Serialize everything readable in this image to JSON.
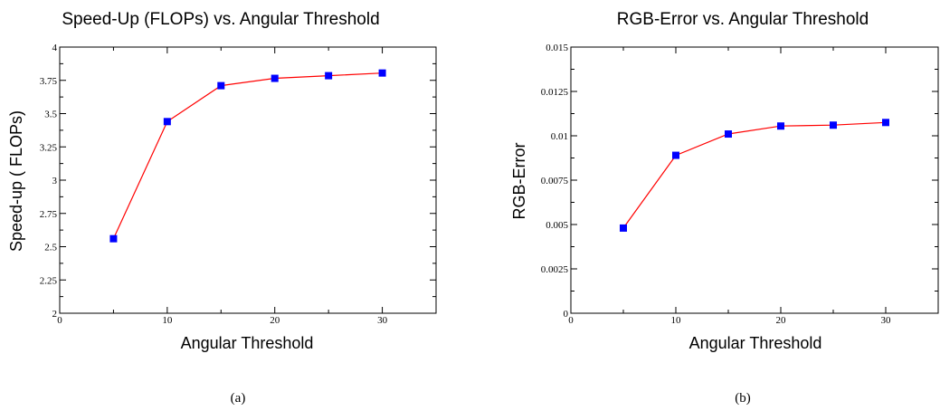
{
  "chart_data": [
    {
      "type": "line",
      "title": "Speed-Up (FLOPs) vs. Angular Threshold",
      "xlabel": "Angular  Threshold",
      "ylabel": "Speed-up ( FLOPs)",
      "caption": "(a)",
      "xlim": [
        0,
        35
      ],
      "ylim": [
        2,
        4
      ],
      "x_ticks": [
        0,
        10,
        20,
        30
      ],
      "x_tick_labels": [
        "0",
        "10",
        "20",
        "30"
      ],
      "y_ticks": [
        2,
        2.25,
        2.5,
        2.75,
        3,
        3.25,
        3.5,
        3.75,
        4
      ],
      "y_tick_labels": [
        "2",
        "2.25",
        "2.5",
        "2.75",
        "3",
        "3.25",
        "3.5",
        "3.75",
        "4"
      ],
      "grid": false,
      "series": [
        {
          "x": [
            5,
            10,
            15,
            20,
            25,
            30
          ],
          "values": [
            2.56,
            3.44,
            3.71,
            3.765,
            3.785,
            3.805
          ],
          "line_color": "#ff0000",
          "marker_color": "#0000ff",
          "marker": "square"
        }
      ]
    },
    {
      "type": "line",
      "title": "RGB-Error vs. Angular Threshold",
      "xlabel": "Angular Threshold",
      "ylabel": "RGB-Error",
      "caption": "(b)",
      "xlim": [
        0,
        35
      ],
      "ylim": [
        0,
        0.015
      ],
      "x_ticks": [
        0,
        10,
        20,
        30
      ],
      "x_tick_labels": [
        "0",
        "10",
        "20",
        "30"
      ],
      "y_ticks": [
        0,
        0.0025,
        0.005,
        0.0075,
        0.01,
        0.0125,
        0.015
      ],
      "y_tick_labels": [
        "0",
        "0.0025",
        "0.005",
        "0.0075",
        "0.01",
        "0.0125",
        "0.015"
      ],
      "grid": false,
      "series": [
        {
          "x": [
            5,
            10,
            15,
            20,
            25,
            30
          ],
          "values": [
            0.0048,
            0.0089,
            0.0101,
            0.01055,
            0.0106,
            0.01075
          ],
          "line_color": "#ff0000",
          "marker_color": "#0000ff",
          "marker": "square"
        }
      ]
    }
  ]
}
